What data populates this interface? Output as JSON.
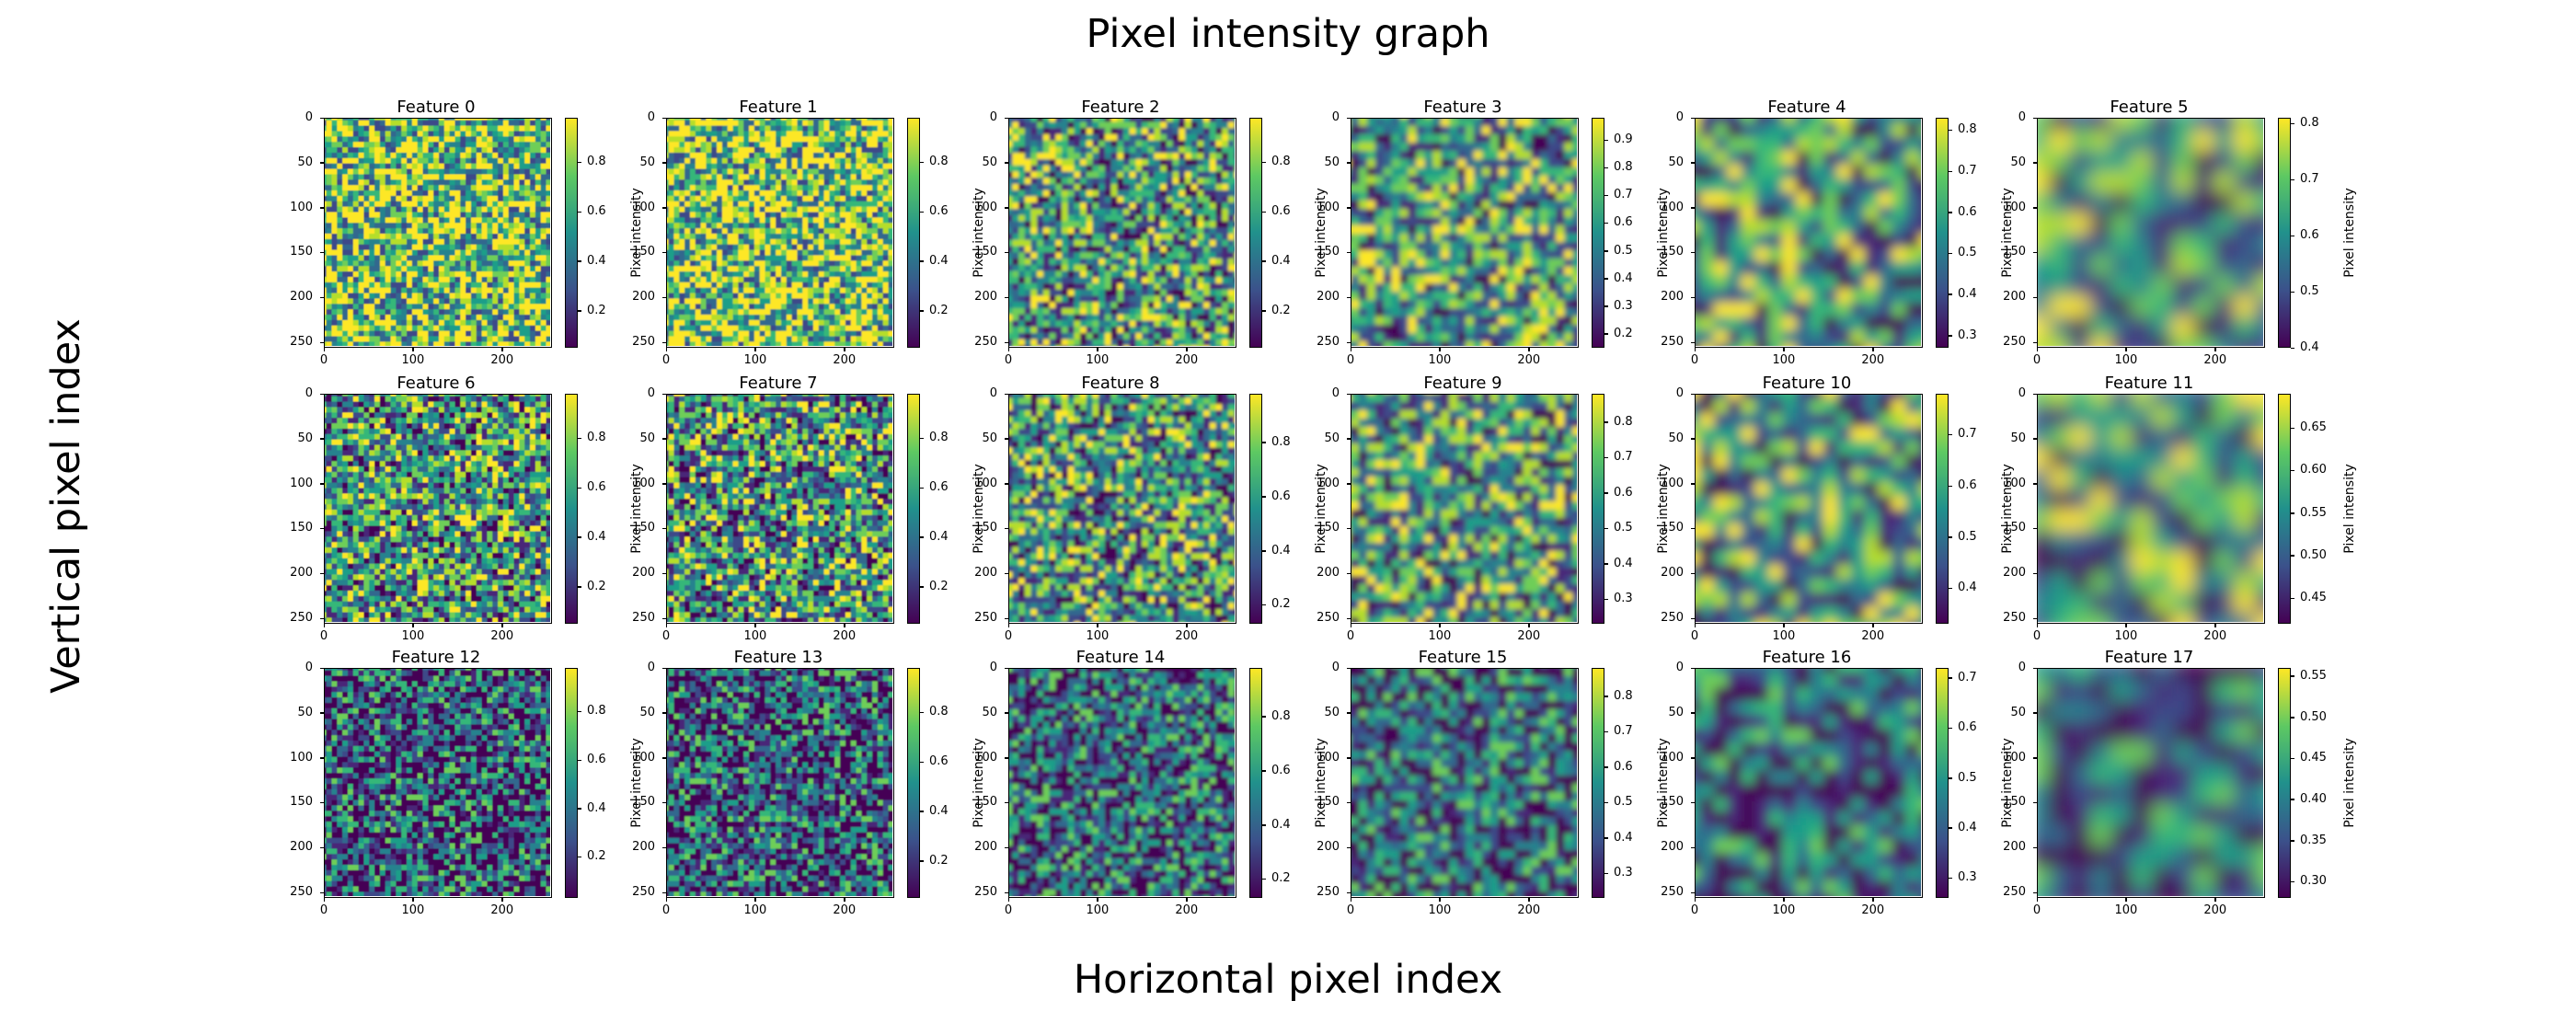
{
  "figure": {
    "title": "Pixel intensity graph",
    "xlabel": "Horizontal pixel index",
    "ylabel": "Vertical pixel index"
  },
  "chart_data": {
    "type": "heatmap",
    "colormap": "viridis",
    "layout_grid": {
      "rows": 3,
      "cols": 6
    },
    "axis": {
      "x_ticks": [
        "0",
        "100",
        "200"
      ],
      "y_ticks": [
        "0",
        "50",
        "100",
        "150",
        "200",
        "250"
      ],
      "xlim": [
        0,
        256
      ],
      "ylim": [
        256,
        0
      ]
    },
    "colorbar_label": "Pixel intensity",
    "panels": [
      {
        "title": "Feature 0",
        "cticks": [
          "0.2",
          "0.4",
          "0.6",
          "0.8"
        ],
        "crange": [
          0.05,
          0.98
        ],
        "blur": 0.6
      },
      {
        "title": "Feature 1",
        "cticks": [
          "0.2",
          "0.4",
          "0.6",
          "0.8"
        ],
        "crange": [
          0.05,
          0.98
        ],
        "blur": 0.7
      },
      {
        "title": "Feature 2",
        "cticks": [
          "0.2",
          "0.4",
          "0.6",
          "0.8"
        ],
        "crange": [
          0.05,
          0.98
        ],
        "blur": 1.5
      },
      {
        "title": "Feature 3",
        "cticks": [
          "0.2",
          "0.3",
          "0.4",
          "0.5",
          "0.6",
          "0.7",
          "0.8",
          "0.9"
        ],
        "crange": [
          0.15,
          0.98
        ],
        "blur": 3
      },
      {
        "title": "Feature 4",
        "cticks": [
          "0.3",
          "0.4",
          "0.5",
          "0.6",
          "0.7",
          "0.8"
        ],
        "crange": [
          0.27,
          0.83
        ],
        "blur": 6
      },
      {
        "title": "Feature 5",
        "cticks": [
          "0.4",
          "0.5",
          "0.6",
          "0.7",
          "0.8"
        ],
        "crange": [
          0.4,
          0.81
        ],
        "blur": 10
      },
      {
        "title": "Feature 6",
        "cticks": [
          "0.2",
          "0.4",
          "0.6",
          "0.8"
        ],
        "crange": [
          0.05,
          0.98
        ],
        "blur": 0.6
      },
      {
        "title": "Feature 7",
        "cticks": [
          "0.2",
          "0.4",
          "0.6",
          "0.8"
        ],
        "crange": [
          0.05,
          0.98
        ],
        "blur": 0.8
      },
      {
        "title": "Feature 8",
        "cticks": [
          "0.2",
          "0.4",
          "0.6",
          "0.8"
        ],
        "crange": [
          0.13,
          0.98
        ],
        "blur": 1.6
      },
      {
        "title": "Feature 9",
        "cticks": [
          "0.3",
          "0.4",
          "0.5",
          "0.6",
          "0.7",
          "0.8"
        ],
        "crange": [
          0.23,
          0.88
        ],
        "blur": 3
      },
      {
        "title": "Feature 10",
        "cticks": [
          "0.4",
          "0.5",
          "0.6",
          "0.7"
        ],
        "crange": [
          0.33,
          0.78
        ],
        "blur": 6
      },
      {
        "title": "Feature 11",
        "cticks": [
          "0.45",
          "0.50",
          "0.55",
          "0.60",
          "0.65"
        ],
        "crange": [
          0.42,
          0.69
        ],
        "blur": 10
      },
      {
        "title": "Feature 12",
        "cticks": [
          "0.2",
          "0.4",
          "0.6",
          "0.8"
        ],
        "crange": [
          0.03,
          0.98
        ],
        "blur": 0.6
      },
      {
        "title": "Feature 13",
        "cticks": [
          "0.2",
          "0.4",
          "0.6",
          "0.8"
        ],
        "crange": [
          0.05,
          0.98
        ],
        "blur": 0.8
      },
      {
        "title": "Feature 14",
        "cticks": [
          "0.2",
          "0.4",
          "0.6",
          "0.8"
        ],
        "crange": [
          0.13,
          0.98
        ],
        "blur": 1.6
      },
      {
        "title": "Feature 15",
        "cticks": [
          "0.3",
          "0.4",
          "0.5",
          "0.6",
          "0.7",
          "0.8"
        ],
        "crange": [
          0.23,
          0.88
        ],
        "blur": 3
      },
      {
        "title": "Feature 16",
        "cticks": [
          "0.3",
          "0.4",
          "0.5",
          "0.6",
          "0.7"
        ],
        "crange": [
          0.26,
          0.72
        ],
        "blur": 6
      },
      {
        "title": "Feature 17",
        "cticks": [
          "0.30",
          "0.35",
          "0.40",
          "0.45",
          "0.50",
          "0.55"
        ],
        "crange": [
          0.28,
          0.56
        ],
        "blur": 10
      }
    ]
  }
}
